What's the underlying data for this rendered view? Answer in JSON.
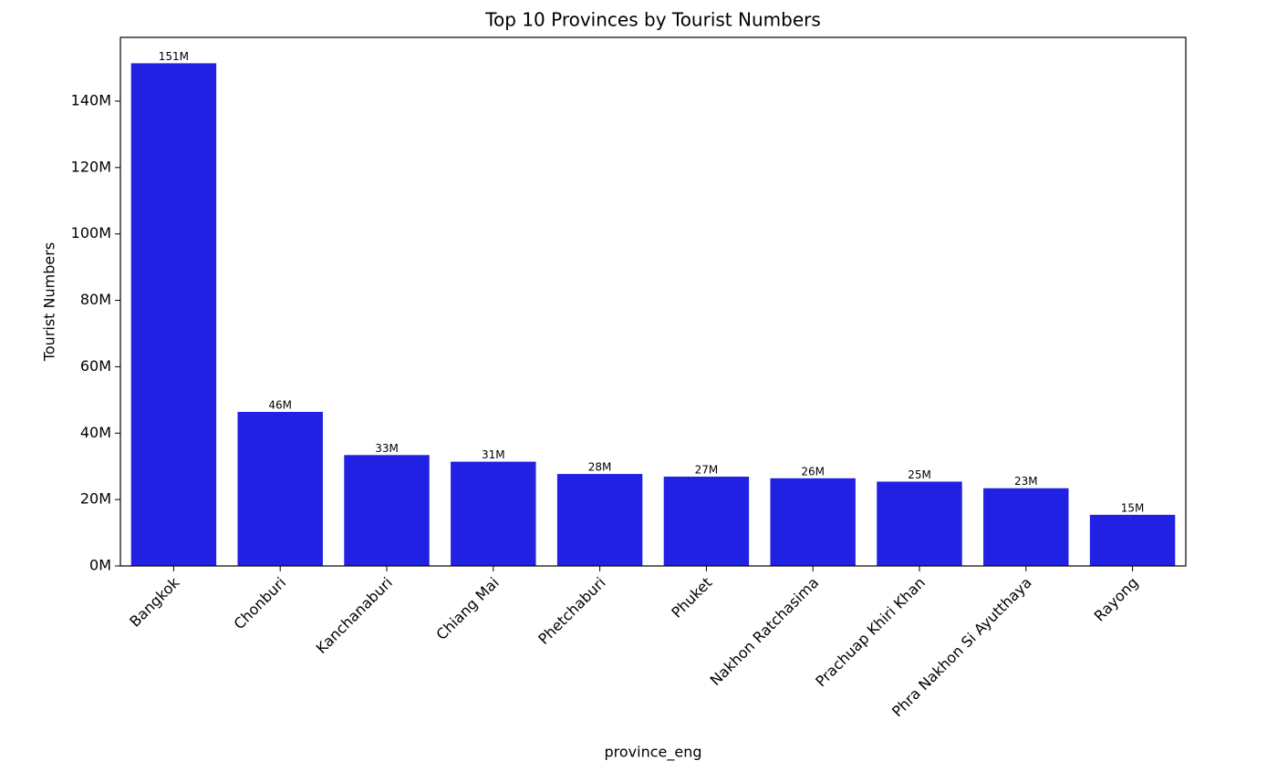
{
  "chart_data": {
    "type": "bar",
    "title": "Top 10 Provinces by Tourist Numbers",
    "x_label": "province_eng",
    "y_label": "Tourist Numbers",
    "categories": [
      "Bangkok",
      "Chonburi",
      "Kanchanaburi",
      "Chiang Mai",
      "Phetchaburi",
      "Phuket",
      "Nakhon Ratchasima",
      "Prachuap Khiri Khan",
      "Phra Nakhon Si Ayutthaya",
      "Rayong"
    ],
    "values": [
      151400000,
      46400000,
      33400000,
      31400000,
      27700000,
      26900000,
      26400000,
      25400000,
      23400000,
      15400000
    ],
    "value_labels": [
      "151M",
      "46M",
      "33M",
      "31M",
      "28M",
      "27M",
      "26M",
      "25M",
      "23M",
      "15M"
    ],
    "color": "#2121e3",
    "ylim": [
      0,
      159200000
    ],
    "yticks": [
      {
        "value": 0,
        "label": "0M"
      },
      {
        "value": 20000000,
        "label": "20M"
      },
      {
        "value": 40000000,
        "label": "40M"
      },
      {
        "value": 60000000,
        "label": "60M"
      },
      {
        "value": 80000000,
        "label": "80M"
      },
      {
        "value": 100000000,
        "label": "100M"
      },
      {
        "value": 120000000,
        "label": "120M"
      },
      {
        "value": 140000000,
        "label": "140M"
      }
    ],
    "grid": false
  }
}
